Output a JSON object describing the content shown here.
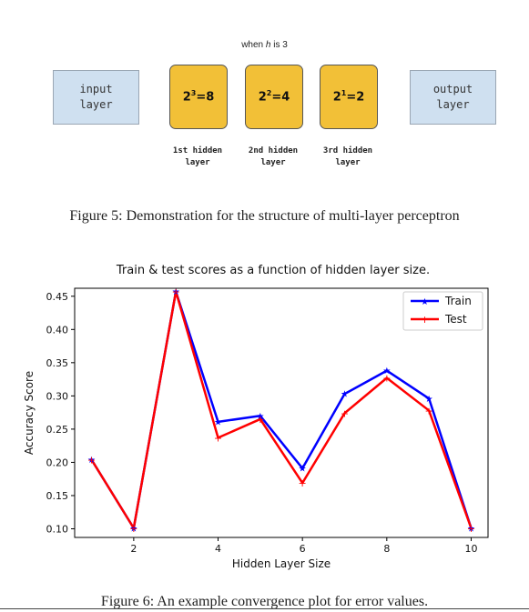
{
  "figure5": {
    "note_prefix": "when ",
    "note_var": "h",
    "note_suffix": " is 3",
    "input_label": "input\nlayer",
    "output_label": "output\nlayer",
    "hidden_nodes": [
      {
        "base": "2",
        "exp": "3",
        "result": "=8"
      },
      {
        "base": "2",
        "exp": "2",
        "result": "=4"
      },
      {
        "base": "2",
        "exp": "1",
        "result": "=2"
      }
    ],
    "hidden_labels": [
      "1st hidden\nlayer",
      "2nd hidden\nlayer",
      "3rd hidden\nlayer"
    ],
    "caption": "Figure 5: Demonstration for the structure of multi-layer perceptron"
  },
  "chart_data": {
    "type": "line",
    "title": "Train & test scores as a function of hidden layer size.",
    "xlabel": "Hidden Layer Size",
    "ylabel": "Accuracy Score",
    "xlim": [
      0.6,
      10.4
    ],
    "ylim": [
      0.087,
      0.462
    ],
    "x": [
      1,
      2,
      3,
      4,
      5,
      6,
      7,
      8,
      9,
      10
    ],
    "xticks": [
      2,
      4,
      6,
      8,
      10
    ],
    "yticks": [
      0.1,
      0.15,
      0.2,
      0.25,
      0.3,
      0.35,
      0.4,
      0.45
    ],
    "ytick_labels": [
      "0.10",
      "0.15",
      "0.20",
      "0.25",
      "0.30",
      "0.35",
      "0.40",
      "0.45"
    ],
    "series": [
      {
        "name": "Train",
        "color": "#0000ff",
        "values": [
          0.204,
          0.101,
          0.457,
          0.261,
          0.27,
          0.191,
          0.303,
          0.338,
          0.296,
          0.101
        ]
      },
      {
        "name": "Test",
        "color": "#ff0000",
        "values": [
          0.204,
          0.101,
          0.457,
          0.237,
          0.265,
          0.169,
          0.274,
          0.327,
          0.278,
          0.101
        ]
      }
    ],
    "legend_position": "top-right",
    "grid": false
  },
  "figure6": {
    "caption": "Figure 6: An example convergence plot for error values."
  }
}
